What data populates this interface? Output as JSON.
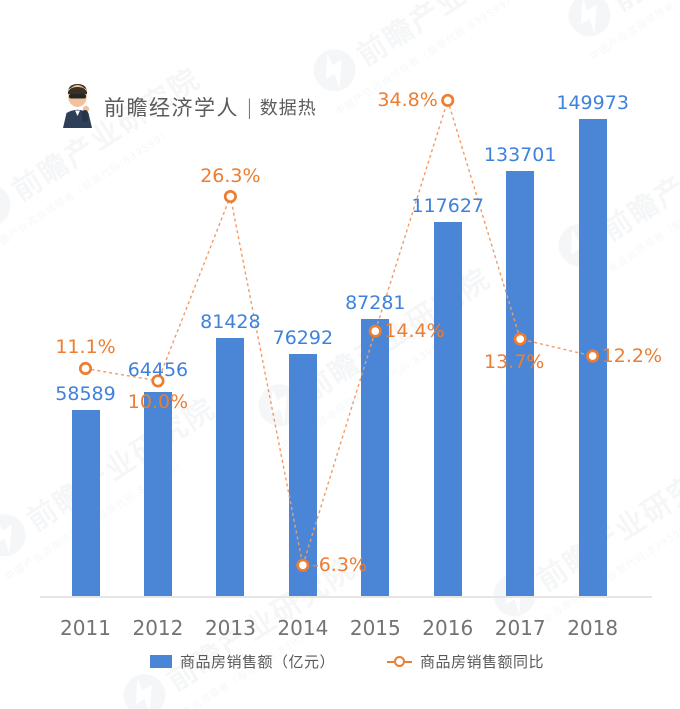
{
  "header": {
    "brand": "前瞻经济学人",
    "divider": "|",
    "tagline": "数据热"
  },
  "watermark": {
    "logo_text": "前瞻产业研究院",
    "sub_text": "中国产业咨询领导者（股票代码:839599）"
  },
  "colors": {
    "bar": "#4A86D5",
    "bar_label": "#3F82DC",
    "line": "#ED7D31",
    "line_dash": "#F09B68",
    "axis": "#E6E6E6",
    "year_label": "#737373",
    "legend_text": "#595959"
  },
  "chart_data": {
    "type": "bar+line",
    "categories": [
      "2011",
      "2012",
      "2013",
      "2014",
      "2015",
      "2016",
      "2017",
      "2018"
    ],
    "series": [
      {
        "name": "商品房销售额（亿元）",
        "type": "bar",
        "values": [
          58589,
          64456,
          81428,
          76292,
          87281,
          117627,
          133701,
          149973
        ],
        "labels": [
          "58589",
          "64456",
          "81428",
          "76292",
          "87281",
          "117627",
          "133701",
          "149973"
        ]
      },
      {
        "name": "商品房销售额同比",
        "type": "line",
        "values": [
          11.1,
          10.0,
          26.3,
          -6.3,
          14.4,
          34.8,
          13.7,
          12.2
        ],
        "labels": [
          "11.1%",
          "10.0%",
          "26.3%",
          "-6.3%",
          "14.4%",
          "34.8%",
          "13.7%",
          "12.2%"
        ]
      }
    ],
    "xlabel": "",
    "ylabel": "",
    "grid": false,
    "legend_position": "bottom",
    "value_axis_hidden": true,
    "pct_label_sides": [
      "above",
      "below",
      "above",
      "right",
      "right",
      "left",
      "below",
      "right"
    ]
  }
}
